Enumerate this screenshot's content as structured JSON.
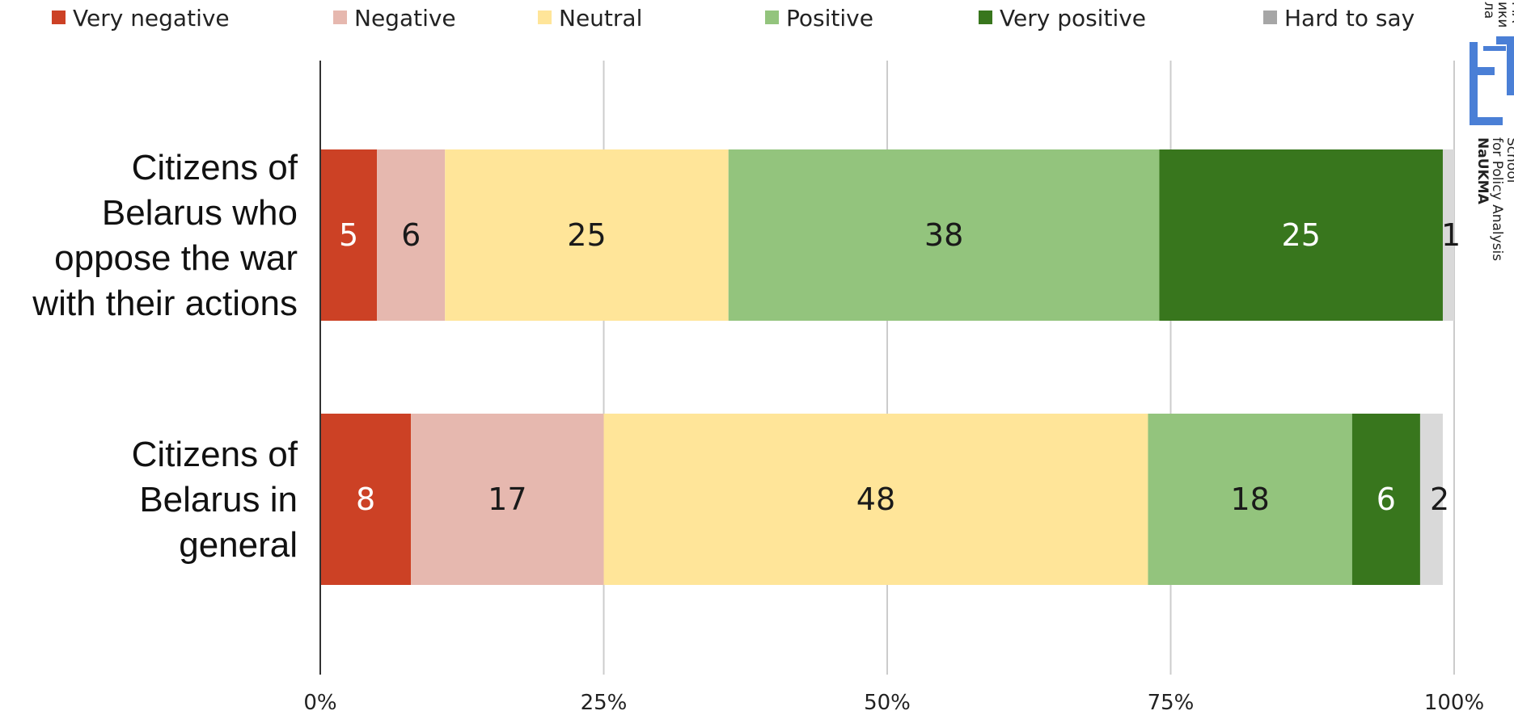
{
  "chart_data": {
    "type": "bar",
    "orientation": "horizontal",
    "stacked": true,
    "title": "",
    "xlabel": "",
    "ylabel": "",
    "xlim": [
      0,
      100
    ],
    "xticks": [
      "0%",
      "25%",
      "50%",
      "75%",
      "100%"
    ],
    "grid": true,
    "legend_position": "top",
    "categories": [
      "Citizens of Belarus who oppose the war with their actions",
      "Citizens of Belarus in general"
    ],
    "category_lines": [
      [
        "Citizens of",
        "Belarus who",
        "oppose the war",
        "with their actions"
      ],
      [
        "Citizens of",
        "Belarus in",
        "general"
      ]
    ],
    "series": [
      {
        "name": "Very negative",
        "color": "#cc4125",
        "label_color": "#ffffff",
        "values": [
          5,
          8
        ]
      },
      {
        "name": "Negative",
        "color": "#e6b8af",
        "label_color": "#1a1a1a",
        "values": [
          6,
          17
        ]
      },
      {
        "name": "Neutral",
        "color": "#ffe599",
        "label_color": "#1a1a1a",
        "values": [
          25,
          48
        ]
      },
      {
        "name": "Positive",
        "color": "#93c47d",
        "label_color": "#1a1a1a",
        "values": [
          38,
          18
        ]
      },
      {
        "name": "Very positive",
        "color": "#38761d",
        "label_color": "#ffffff",
        "values": [
          25,
          6
        ]
      },
      {
        "name": "Hard to say",
        "color": "#d9d9d9",
        "label_color": "#1a1a1a",
        "legend_color": "#a6a6a6",
        "values": [
          1,
          2
        ]
      }
    ]
  },
  "logo": {
    "lines": [
      "School",
      "for Policy Analysis",
      "NaUKMA"
    ],
    "partial_lines": [
      "ла",
      "ики",
      "МА"
    ],
    "color": "#4a7fd6"
  }
}
